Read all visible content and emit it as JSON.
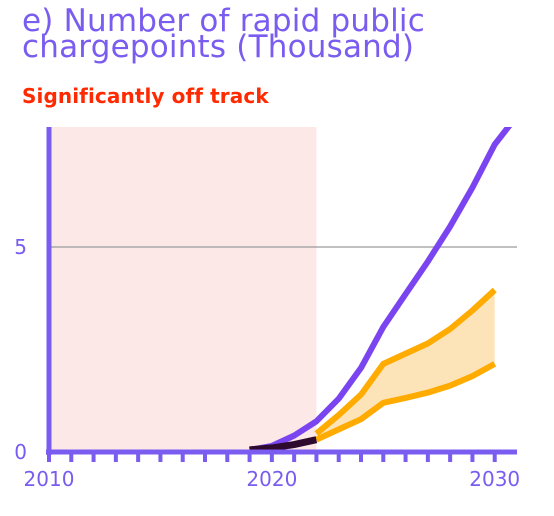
{
  "title": "e) Number of rapid public\nchargepoints (Thousand)",
  "status": "Significantly off track",
  "colors": {
    "title": "#7a5cf0",
    "status": "#ff2a00",
    "axis": "#7a5cf0",
    "pathway": "#7a44f0",
    "historical": "#2e0a2e",
    "projection": "#ffab00",
    "projection_fill": "#fde3b8",
    "shaded_period": "#fde8e8",
    "gridline": "#9a9a9a"
  },
  "chart_data": {
    "type": "line",
    "title": "e) Number of rapid public chargepoints (Thousand)",
    "subtitle": "Significantly off track",
    "xlabel": "",
    "ylabel": "",
    "xlim": [
      2010,
      2031
    ],
    "ylim": [
      0,
      8
    ],
    "x_ticks": [
      2010,
      2020,
      2030
    ],
    "x_minor_ticks": [
      2011,
      2012,
      2013,
      2014,
      2015,
      2016,
      2017,
      2018,
      2019,
      2021,
      2022,
      2023,
      2024,
      2025,
      2026,
      2027,
      2028,
      2029
    ],
    "y_ticks": [
      0,
      5
    ],
    "gridlines_y": [
      5
    ],
    "shaded_range_x": [
      2010,
      2022
    ],
    "series": [
      {
        "role": "historical",
        "x": [
          2019,
          2020,
          2021,
          2022
        ],
        "y": [
          0.05,
          0.1,
          0.18,
          0.3
        ]
      },
      {
        "role": "pathway",
        "x": [
          2019,
          2020,
          2021,
          2022,
          2023,
          2024,
          2025,
          2026,
          2027,
          2028,
          2029,
          2030,
          2031
        ],
        "y": [
          0.05,
          0.15,
          0.4,
          0.75,
          1.3,
          2.05,
          3.05,
          3.85,
          4.65,
          5.5,
          6.45,
          7.5,
          8.2
        ]
      },
      {
        "role": "projection-upper",
        "x": [
          2022,
          2023,
          2024,
          2025,
          2026,
          2027,
          2028,
          2029,
          2030
        ],
        "y": [
          0.45,
          0.9,
          1.4,
          2.15,
          2.4,
          2.65,
          3.0,
          3.45,
          3.95
        ]
      },
      {
        "role": "projection-lower",
        "x": [
          2022,
          2023,
          2024,
          2025,
          2026,
          2027,
          2028,
          2029,
          2030
        ],
        "y": [
          0.3,
          0.55,
          0.8,
          1.2,
          1.32,
          1.45,
          1.62,
          1.85,
          2.15
        ]
      }
    ]
  }
}
